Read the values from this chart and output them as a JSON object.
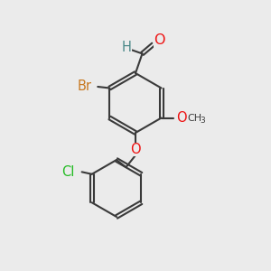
{
  "background_color": "#ebebeb",
  "bond_color": "#3a3a3a",
  "bond_width": 1.5,
  "atom_colors": {
    "O": "#ee1111",
    "Br": "#c87820",
    "Cl": "#22bb22",
    "C": "#3a3a3a",
    "H": "#4a8888"
  },
  "font_size": 10.5,
  "font_size_sub": 8.0
}
